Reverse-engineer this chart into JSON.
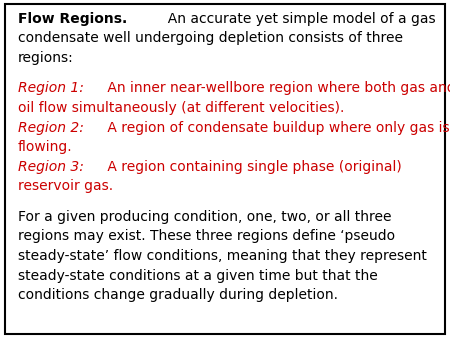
{
  "background_color": "#ffffff",
  "border_color": "#000000",
  "red_color": "#cc0000",
  "black_color": "#000000",
  "font_size": 10.0,
  "lines": [
    {
      "parts": [
        {
          "text": "Flow Regions.",
          "bold": true,
          "italic": false,
          "color": "black"
        },
        {
          "text": "  An accurate yet simple model of a gas",
          "bold": false,
          "italic": false,
          "color": "black"
        }
      ]
    },
    {
      "parts": [
        {
          "text": "condensate well undergoing depletion consists of three",
          "bold": false,
          "italic": false,
          "color": "black"
        }
      ]
    },
    {
      "parts": [
        {
          "text": "regions:",
          "bold": false,
          "italic": false,
          "color": "black"
        }
      ]
    },
    {
      "parts": [
        {
          "text": "",
          "bold": false,
          "italic": false,
          "color": "black"
        }
      ]
    },
    {
      "parts": [
        {
          "text": "Region 1:",
          "bold": false,
          "italic": true,
          "color": "red"
        },
        {
          "text": " An inner near-wellbore region where both gas and",
          "bold": false,
          "italic": false,
          "color": "red"
        }
      ]
    },
    {
      "parts": [
        {
          "text": "oil flow simultaneously (at different velocities).",
          "bold": false,
          "italic": false,
          "color": "red"
        }
      ]
    },
    {
      "parts": [
        {
          "text": "Region 2:",
          "bold": false,
          "italic": true,
          "color": "red"
        },
        {
          "text": " A region of condensate buildup where only gas is",
          "bold": false,
          "italic": false,
          "color": "red"
        }
      ]
    },
    {
      "parts": [
        {
          "text": "flowing.",
          "bold": false,
          "italic": false,
          "color": "red"
        }
      ]
    },
    {
      "parts": [
        {
          "text": "Region 3:",
          "bold": false,
          "italic": true,
          "color": "red"
        },
        {
          "text": " A region containing single phase (original)",
          "bold": false,
          "italic": false,
          "color": "red"
        }
      ]
    },
    {
      "parts": [
        {
          "text": "reservoir gas.",
          "bold": false,
          "italic": false,
          "color": "red"
        }
      ]
    },
    {
      "parts": [
        {
          "text": "",
          "bold": false,
          "italic": false,
          "color": "black"
        }
      ]
    },
    {
      "parts": [
        {
          "text": "For a given producing condition, one, two, or all three",
          "bold": false,
          "italic": false,
          "color": "black"
        }
      ]
    },
    {
      "parts": [
        {
          "text": "regions may exist. These three regions define ‘pseudo",
          "bold": false,
          "italic": false,
          "color": "black"
        }
      ]
    },
    {
      "parts": [
        {
          "text": "steady-state’ flow conditions, meaning that they represent",
          "bold": false,
          "italic": false,
          "color": "black"
        }
      ]
    },
    {
      "parts": [
        {
          "text": "steady-state conditions at a given time but that the",
          "bold": false,
          "italic": false,
          "color": "black"
        }
      ]
    },
    {
      "parts": [
        {
          "text": "conditions change gradually during depletion.",
          "bold": false,
          "italic": false,
          "color": "black"
        }
      ]
    }
  ]
}
